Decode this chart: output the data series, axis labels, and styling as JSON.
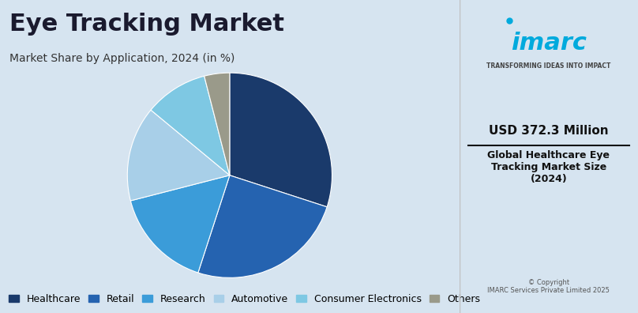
{
  "title": "Eye Tracking Market",
  "subtitle": "Market Share by Application, 2024 (in %)",
  "slices": [
    {
      "label": "Healthcare",
      "value": 30,
      "color": "#1a3a6b"
    },
    {
      "label": "Retail",
      "value": 25,
      "color": "#2563b0"
    },
    {
      "label": "Research",
      "value": 16,
      "color": "#3b9cd9"
    },
    {
      "label": "Automotive",
      "value": 15,
      "color": "#a8cfe8"
    },
    {
      "label": "Consumer Electronics",
      "value": 10,
      "color": "#7ec8e3"
    },
    {
      "label": "Others",
      "value": 4,
      "color": "#9a9a8a"
    }
  ],
  "bg_color": "#d6e4f0",
  "right_panel_bg": "#ffffff",
  "title_fontsize": 22,
  "subtitle_fontsize": 10,
  "legend_fontsize": 9,
  "usd_value": "USD 372.3 Million",
  "market_desc": "Global Healthcare Eye\nTracking Market Size\n(2024)",
  "copyright": "© Copyright\nIMARC Services Private Limited 2025",
  "start_angle": 90
}
